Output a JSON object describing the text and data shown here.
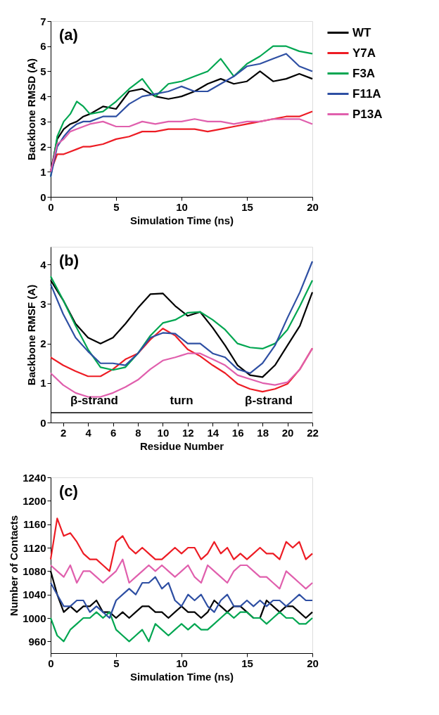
{
  "chart_data": [
    {
      "type": "line",
      "title": "(a)",
      "xlabel": "Simulation Time (ns)",
      "ylabel": "Backbone RMSD (A)",
      "xlim": [
        0,
        20
      ],
      "xticks": [
        0,
        5,
        10,
        15,
        20
      ],
      "ylim": [
        0,
        7
      ],
      "yticks": [
        0,
        1,
        2,
        3,
        4,
        5,
        6,
        7
      ],
      "grid": false,
      "legend": "right",
      "line_style": "solid",
      "marker": "none",
      "x": [
        0,
        0.5,
        1,
        1.5,
        2,
        2.5,
        3,
        4,
        5,
        6,
        7,
        8,
        9,
        10,
        11,
        12,
        13,
        14,
        15,
        16,
        17,
        18,
        19,
        20
      ],
      "series": [
        {
          "name": "WT",
          "color": "#000000",
          "values": [
            1.0,
            2.3,
            2.7,
            2.9,
            3.0,
            3.2,
            3.3,
            3.6,
            3.5,
            4.2,
            4.3,
            4.0,
            3.9,
            4.0,
            4.2,
            4.5,
            4.7,
            4.5,
            4.6,
            5.0,
            4.6,
            4.7,
            4.9,
            4.7
          ]
        },
        {
          "name": "Y7A",
          "color": "#ed1c24",
          "values": [
            1.0,
            1.7,
            1.7,
            1.8,
            1.9,
            2.0,
            2.0,
            2.1,
            2.3,
            2.4,
            2.6,
            2.6,
            2.7,
            2.7,
            2.7,
            2.6,
            2.7,
            2.8,
            2.9,
            3.0,
            3.1,
            3.2,
            3.2,
            3.4
          ]
        },
        {
          "name": "F3A",
          "color": "#00a651",
          "values": [
            0.8,
            2.4,
            3.0,
            3.3,
            3.8,
            3.6,
            3.3,
            3.4,
            3.8,
            4.3,
            4.7,
            4.0,
            4.5,
            4.6,
            4.8,
            5.0,
            5.5,
            4.8,
            5.3,
            5.6,
            6.0,
            6.0,
            5.8,
            5.7
          ]
        },
        {
          "name": "F11A",
          "color": "#2e4fa3",
          "values": [
            0.8,
            2.0,
            2.4,
            2.7,
            2.9,
            3.0,
            3.0,
            3.2,
            3.2,
            3.7,
            4.0,
            4.1,
            4.2,
            4.4,
            4.2,
            4.2,
            4.5,
            4.8,
            5.2,
            5.3,
            5.5,
            5.7,
            5.2,
            5.0
          ]
        },
        {
          "name": "P13A",
          "color": "#e05fad",
          "values": [
            1.0,
            2.1,
            2.3,
            2.6,
            2.7,
            2.8,
            2.9,
            3.0,
            2.8,
            2.8,
            3.0,
            2.9,
            3.0,
            3.0,
            3.1,
            3.0,
            3.0,
            2.9,
            3.0,
            3.0,
            3.1,
            3.1,
            3.1,
            2.9
          ]
        }
      ]
    },
    {
      "type": "line",
      "title": "(b)",
      "xlabel": "Residue Number",
      "ylabel": "Backbone RMSF (A)",
      "xlim": [
        1,
        22
      ],
      "xticks": [
        2,
        4,
        6,
        8,
        10,
        12,
        14,
        16,
        18,
        20,
        22
      ],
      "ylim": [
        0,
        4.45
      ],
      "yticks": [
        0,
        1,
        2,
        3,
        4
      ],
      "grid": false,
      "line_style": "solid",
      "marker": "none",
      "x": [
        1,
        2,
        3,
        4,
        5,
        6,
        7,
        8,
        9,
        10,
        11,
        12,
        13,
        14,
        15,
        16,
        17,
        18,
        19,
        20,
        21,
        22
      ],
      "series": [
        {
          "color": "#000000",
          "values": [
            3.6,
            3.1,
            2.5,
            2.15,
            2.0,
            2.15,
            2.5,
            2.9,
            3.25,
            3.27,
            2.95,
            2.7,
            2.8,
            2.4,
            1.95,
            1.45,
            1.2,
            1.15,
            1.45,
            1.95,
            2.45,
            3.3
          ]
        },
        {
          "color": "#ed1c24",
          "values": [
            1.65,
            1.45,
            1.3,
            1.17,
            1.17,
            1.35,
            1.6,
            1.75,
            2.1,
            2.38,
            2.2,
            1.85,
            1.68,
            1.45,
            1.25,
            0.98,
            0.85,
            0.78,
            0.85,
            0.98,
            1.35,
            1.88
          ]
        },
        {
          "color": "#00a651",
          "values": [
            3.7,
            3.1,
            2.45,
            1.85,
            1.4,
            1.33,
            1.4,
            1.75,
            2.2,
            2.52,
            2.6,
            2.78,
            2.8,
            2.6,
            2.35,
            2.0,
            1.9,
            1.87,
            2.0,
            2.35,
            2.95,
            3.6
          ]
        },
        {
          "color": "#2e4fa3",
          "values": [
            3.5,
            2.75,
            2.15,
            1.8,
            1.5,
            1.5,
            1.45,
            1.75,
            2.15,
            2.27,
            2.25,
            2.0,
            2.0,
            1.75,
            1.65,
            1.35,
            1.25,
            1.5,
            1.95,
            2.65,
            3.3,
            4.08
          ]
        },
        {
          "color": "#e05fad",
          "values": [
            1.25,
            0.95,
            0.75,
            0.65,
            0.65,
            0.75,
            0.9,
            1.08,
            1.35,
            1.57,
            1.65,
            1.75,
            1.75,
            1.6,
            1.45,
            1.2,
            1.1,
            1.0,
            0.95,
            1.02,
            1.35,
            1.88
          ]
        }
      ],
      "ref_lines": [
        {
          "axis": "y",
          "value": 0.25,
          "color": "#000000"
        }
      ],
      "annotations": [
        "β-strand",
        "turn",
        "β-strand"
      ]
    },
    {
      "type": "line",
      "title": "(c)",
      "xlabel": "Simulation Time (ns)",
      "ylabel": "Number of Contacts",
      "xlim": [
        0,
        20
      ],
      "xticks": [
        0,
        5,
        10,
        15,
        20
      ],
      "ylim": [
        940,
        1240
      ],
      "yticks": [
        960,
        1000,
        1040,
        1080,
        1120,
        1160,
        1200,
        1240
      ],
      "grid": false,
      "line_style": "solid",
      "marker": "none",
      "x": [
        0,
        0.5,
        1,
        1.5,
        2,
        2.5,
        3,
        3.5,
        4,
        4.5,
        5,
        5.5,
        6,
        6.5,
        7,
        7.5,
        8,
        8.5,
        9,
        9.5,
        10,
        10.5,
        11,
        11.5,
        12,
        12.5,
        13,
        13.5,
        14,
        14.5,
        15,
        15.5,
        16,
        16.5,
        17,
        17.5,
        18,
        18.5,
        19,
        19.5,
        20
      ],
      "series": [
        {
          "color": "#000000",
          "values": [
            1080,
            1040,
            1010,
            1020,
            1010,
            1020,
            1020,
            1030,
            1010,
            1010,
            1000,
            1010,
            1000,
            1010,
            1020,
            1020,
            1010,
            1010,
            1000,
            1010,
            1020,
            1010,
            1010,
            1000,
            1010,
            1030,
            1020,
            1010,
            1020,
            1020,
            1010,
            1000,
            1000,
            1030,
            1020,
            1010,
            1020,
            1020,
            1010,
            1000,
            1010
          ]
        },
        {
          "color": "#ed1c24",
          "values": [
            1100,
            1170,
            1140,
            1145,
            1130,
            1110,
            1100,
            1100,
            1090,
            1080,
            1130,
            1140,
            1120,
            1110,
            1120,
            1110,
            1100,
            1100,
            1110,
            1120,
            1110,
            1120,
            1120,
            1100,
            1110,
            1130,
            1110,
            1120,
            1100,
            1110,
            1100,
            1110,
            1120,
            1110,
            1110,
            1100,
            1130,
            1120,
            1130,
            1100,
            1110
          ]
        },
        {
          "color": "#00a651",
          "values": [
            1000,
            970,
            960,
            980,
            990,
            1000,
            1000,
            1010,
            1000,
            1010,
            980,
            970,
            960,
            970,
            980,
            960,
            990,
            980,
            970,
            980,
            990,
            980,
            990,
            980,
            980,
            990,
            1000,
            1010,
            1000,
            1010,
            1010,
            1000,
            1000,
            990,
            1000,
            1010,
            1000,
            1000,
            990,
            990,
            1000
          ]
        },
        {
          "color": "#2e4fa3",
          "values": [
            1060,
            1040,
            1020,
            1020,
            1030,
            1030,
            1010,
            1020,
            1010,
            1000,
            1030,
            1040,
            1050,
            1040,
            1060,
            1060,
            1070,
            1050,
            1060,
            1030,
            1020,
            1040,
            1030,
            1040,
            1020,
            1010,
            1030,
            1040,
            1020,
            1020,
            1030,
            1020,
            1030,
            1020,
            1030,
            1030,
            1020,
            1030,
            1040,
            1030,
            1030
          ]
        },
        {
          "color": "#e05fad",
          "values": [
            1090,
            1080,
            1070,
            1090,
            1060,
            1080,
            1080,
            1070,
            1060,
            1070,
            1080,
            1100,
            1060,
            1070,
            1080,
            1090,
            1080,
            1090,
            1080,
            1070,
            1080,
            1090,
            1070,
            1060,
            1090,
            1080,
            1070,
            1060,
            1080,
            1090,
            1090,
            1080,
            1070,
            1070,
            1060,
            1050,
            1080,
            1070,
            1060,
            1050,
            1060
          ]
        }
      ]
    }
  ]
}
